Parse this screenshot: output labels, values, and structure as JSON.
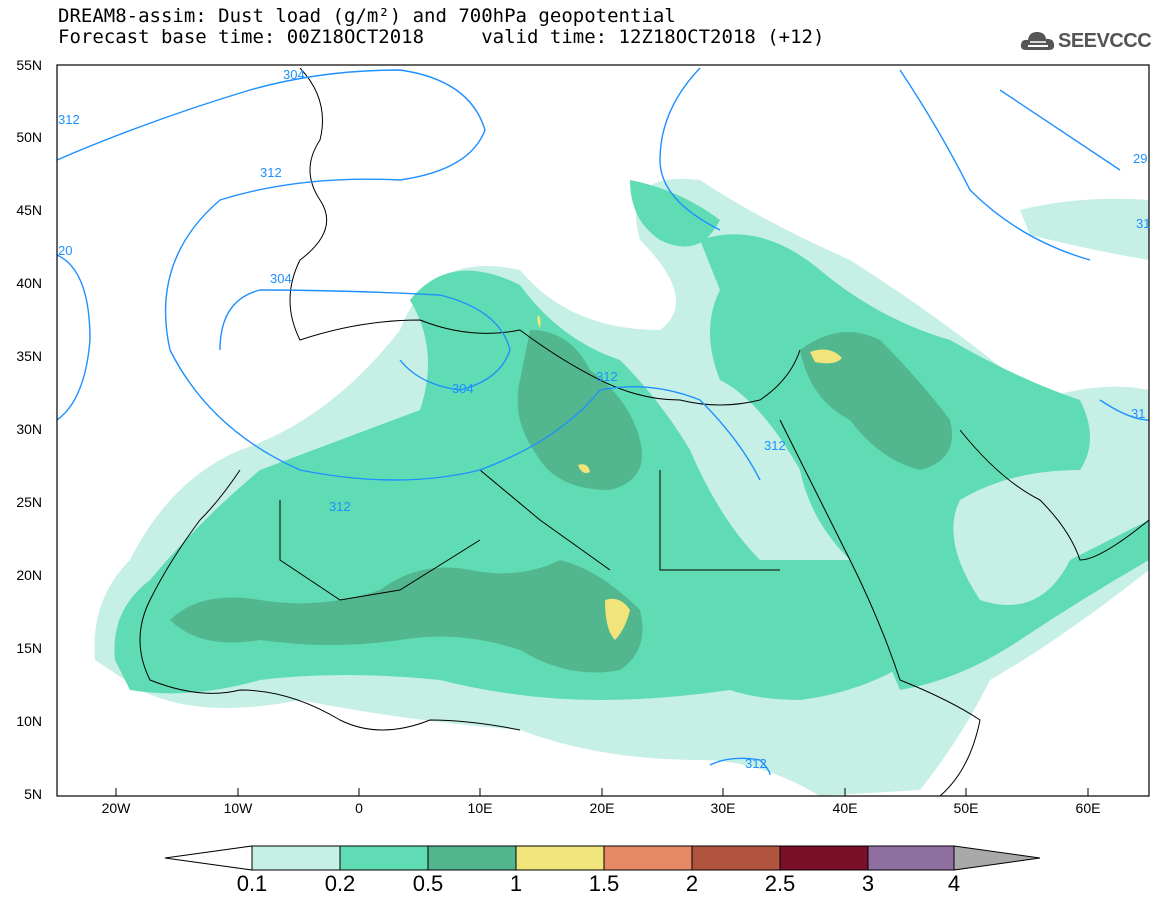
{
  "header": {
    "title_line1": "DREAM8-assim: Dust load (g/m²) and 700hPa geopotential",
    "title_line2": "Forecast base time: 00Z18OCT2018     valid time: 12Z18OCT2018 (+12)"
  },
  "logo": {
    "text": "SEEVCCC",
    "icon": "cloud-icon"
  },
  "map": {
    "lat_labels": [
      "55N",
      "50N",
      "45N",
      "40N",
      "35N",
      "30N",
      "25N",
      "20N",
      "15N",
      "10N",
      "5N"
    ],
    "lon_labels": [
      "20W",
      "10W",
      "0",
      "10E",
      "20E",
      "30E",
      "40E",
      "50E",
      "60E"
    ],
    "contour_labels": [
      "304",
      "312",
      "312",
      "304",
      "304",
      "312",
      "312",
      "312",
      "312",
      "20",
      "29",
      "31",
      "31",
      "312"
    ]
  },
  "colorbar": {
    "labels": [
      "0.1",
      "0.2",
      "0.5",
      "1",
      "1.5",
      "2",
      "2.5",
      "3",
      "4"
    ],
    "colors": [
      "#c6efe6",
      "#5fdcb4",
      "#52b78f",
      "#f0e47a",
      "#e58a64",
      "#b0533f",
      "#7a0f2a",
      "#8f6ea0",
      "#a9a9a9"
    ]
  }
}
